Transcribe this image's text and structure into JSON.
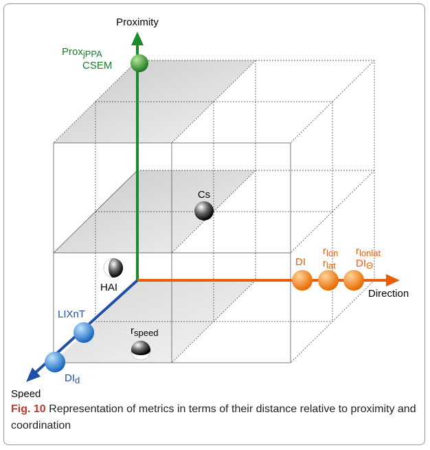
{
  "axes": {
    "proximity": "Proximity",
    "direction": "Direction",
    "speed": "Speed"
  },
  "labels": {
    "prox": {
      "text": "Prox",
      "sub": "jPPA"
    },
    "csem": "CSEM",
    "cs": "Cs",
    "hai": "HAI",
    "di": "DI",
    "rlon": {
      "text": "r",
      "sub": "lon"
    },
    "rlat": {
      "text": "r",
      "sub": "lat"
    },
    "rlonlat": {
      "text": "r",
      "sub": "lonlat"
    },
    "dith": {
      "text": "DI",
      "sub": "Θ"
    },
    "lixnt": "LIXnT",
    "did": {
      "text": "DI",
      "sub": "d"
    },
    "rspeed": {
      "text": "r",
      "sub": "speed"
    }
  },
  "caption": {
    "label": "Fig. 10",
    "text": "Representation of metrics in terms of their distance relative to proximity and coordination"
  }
}
